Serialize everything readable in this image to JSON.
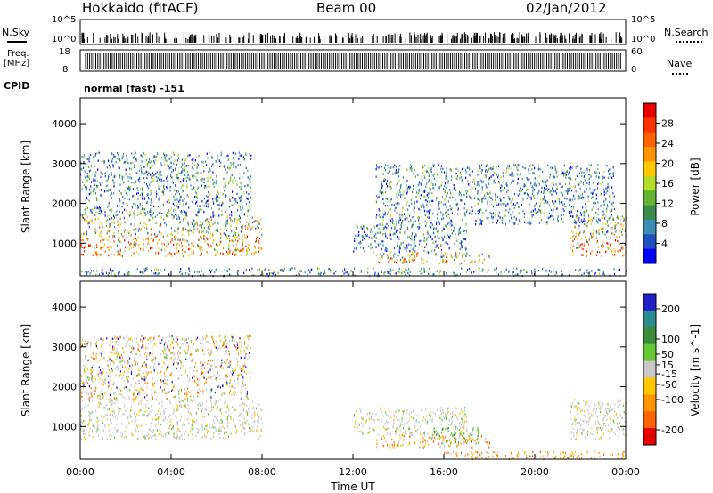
{
  "header": {
    "station": "Hokkaido (fitACF)",
    "beam": "Beam 00",
    "date": "02/Jan/2012"
  },
  "strips": {
    "nsky_label": "N.Sky",
    "nsky_ticks": [
      "10^5",
      "10^0"
    ],
    "nsearch_label": "N.Search",
    "nsearch_ticks": [
      "10^5",
      "10^0"
    ],
    "freq_label_line1": "Freq.",
    "freq_label_line2": "[MHz]",
    "freq_ticks": [
      "18",
      "8"
    ],
    "nave_label": "Nave",
    "nave_ticks": [
      "60",
      "0"
    ],
    "cpid_label": "CPID",
    "cpid_text": "normal (fast) -151"
  },
  "colors": {
    "power": [
      "#0000ff",
      "#2050c0",
      "#3c8cb4",
      "#3c8c50",
      "#64b432",
      "#b4dc28",
      "#ffc800",
      "#ff9600",
      "#ff6400",
      "#ff3200",
      "#e60000"
    ],
    "velocity": [
      "#2020c8",
      "#2a8c8c",
      "#3c8c3c",
      "#64c832",
      "#c8c8c8",
      "#ffc800",
      "#ff9600",
      "#ff6400",
      "#e60000"
    ]
  },
  "chart_data": [
    {
      "type": "heatmap",
      "panel": "power",
      "title": "",
      "xlabel": "Time UT",
      "ylabel": "Slant Range [km]",
      "xlim": [
        "00:00",
        "24:00"
      ],
      "ylim": [
        180,
        4650
      ],
      "x_ticks": [
        "00:00",
        "04:00",
        "08:00",
        "12:00",
        "16:00",
        "20:00",
        "00:00"
      ],
      "y_ticks": [
        1000,
        2000,
        3000,
        4000
      ],
      "colorbar": {
        "label": "Power [dB]",
        "ticks": [
          4,
          8,
          12,
          16,
          20,
          24,
          28
        ],
        "range": [
          0,
          32
        ]
      },
      "echo_regions": [
        {
          "t_start": 0.0,
          "t_end": 8.0,
          "r_start": 700,
          "r_end": 1700,
          "level": "high"
        },
        {
          "t_start": 0.0,
          "t_end": 7.5,
          "r_start": 1700,
          "r_end": 3300,
          "level": "low"
        },
        {
          "t_start": 12.0,
          "t_end": 17.0,
          "r_start": 800,
          "r_end": 1500,
          "level": "medium"
        },
        {
          "t_start": 13.0,
          "t_end": 18.0,
          "r_start": 500,
          "r_end": 800,
          "level": "high"
        },
        {
          "t_start": 13.0,
          "t_end": 23.5,
          "r_start": 1500,
          "r_end": 3000,
          "level": "low"
        },
        {
          "t_start": 21.5,
          "t_end": 24.0,
          "r_start": 700,
          "r_end": 1700,
          "level": "high"
        },
        {
          "t_start": 0.0,
          "t_end": 24.0,
          "r_start": 200,
          "r_end": 400,
          "level": "low"
        }
      ]
    },
    {
      "type": "heatmap",
      "panel": "velocity",
      "title": "",
      "xlabel": "Time UT",
      "ylabel": "Slant Range [km]",
      "xlim": [
        "00:00",
        "24:00"
      ],
      "ylim": [
        180,
        4650
      ],
      "x_ticks": [
        "00:00",
        "04:00",
        "08:00",
        "12:00",
        "16:00",
        "20:00",
        "00:00"
      ],
      "y_ticks": [
        1000,
        2000,
        3000,
        4000
      ],
      "colorbar": {
        "label": "Velocity [m s^-1]",
        "ticks": [
          200,
          100,
          50,
          15,
          -15,
          -50,
          -100,
          -200
        ],
        "range": [
          -250,
          250
        ]
      },
      "echo_regions": [
        {
          "t_start": 0.0,
          "t_end": 8.0,
          "r_start": 700,
          "r_end": 1700,
          "level": "ground"
        },
        {
          "t_start": 0.0,
          "t_end": 7.5,
          "r_start": 1700,
          "r_end": 3300,
          "level": "mixed"
        },
        {
          "t_start": 12.0,
          "t_end": 17.0,
          "r_start": 800,
          "r_end": 1500,
          "level": "ground"
        },
        {
          "t_start": 13.0,
          "t_end": 18.0,
          "r_start": 500,
          "r_end": 800,
          "level": "negative"
        },
        {
          "t_start": 15.0,
          "t_end": 17.5,
          "r_start": 600,
          "r_end": 1000,
          "level": "positive"
        },
        {
          "t_start": 21.5,
          "t_end": 24.0,
          "r_start": 700,
          "r_end": 1700,
          "level": "ground"
        },
        {
          "t_start": 16.0,
          "t_end": 24.0,
          "r_start": 200,
          "r_end": 400,
          "level": "negative"
        }
      ]
    }
  ]
}
